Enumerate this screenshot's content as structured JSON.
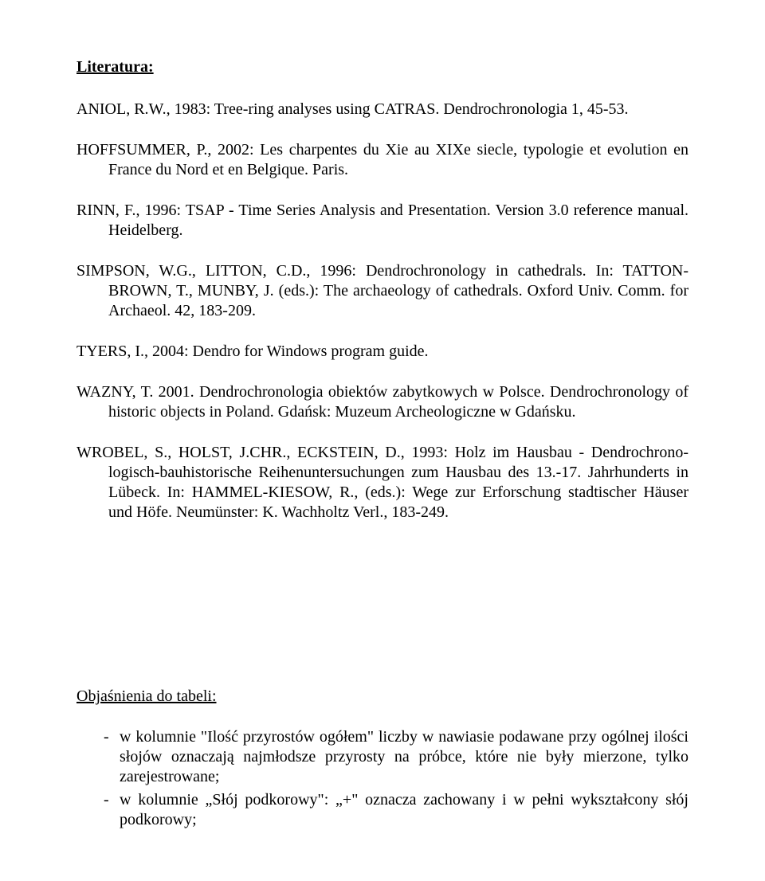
{
  "page": {
    "literatura_label": "Literatura:",
    "font_size_pt": 15,
    "line_height": 1.25
  },
  "references": [
    "ANIOL, R.W., 1983: Tree-ring analyses using CATRAS. Dendrochronologia 1, 45-53.",
    "HOFFSUMMER, P., 2002: Les charpentes du Xie au XIXe siecle, typologie et evolution en France du Nord et en Belgique. Paris.",
    "RINN, F., 1996: TSAP - Time Series Analysis and Presentation. Version 3.0 reference manual. Heidelberg.",
    "SIMPSON, W.G., LITTON, C.D., 1996: Dendrochronology in cathedrals. In: TATTON-BROWN, T., MUNBY, J. (eds.): The archaeology of cathedrals. Oxford Univ. Comm. for Archaeol. 42, 183-209.",
    "TYERS, I., 2004: Dendro for Windows program guide.",
    "WAZNY, T. 2001. Dendrochronologia obiektów zabytkowych w Polsce. Dendrochronology of historic objects in Poland. Gdańsk: Muzeum Archeologiczne w Gdańsku.",
    "WROBEL, S., HOLST, J.CHR., ECKSTEIN, D., 1993: Holz im Hausbau - Dendrochrono­logisch-bauhistorische Reihenuntersuchungen zum Hausbau des 13.-17. Jahrhunderts in Lübeck. In: HAMMEL-KIESOW, R., (eds.): Wege zur Erforschung stadtischer Häuser und Höfe. Neumünster: K. Wachholtz Verl., 183-249."
  ],
  "notes": {
    "heading": "Objaśnienia do tabeli:",
    "items": [
      "w kolumnie \"Ilość przyrostów ogółem\" liczby w nawiasie podawane przy ogólnej ilości słojów oznaczają najmłodsze przyrosty na próbce, które nie były mierzone, tylko zarejestrowane;",
      "w kolumnie „Słój podkorowy\": „+\" oznacza zachowany i w pełni wykształcony słój podkorowy;"
    ]
  }
}
